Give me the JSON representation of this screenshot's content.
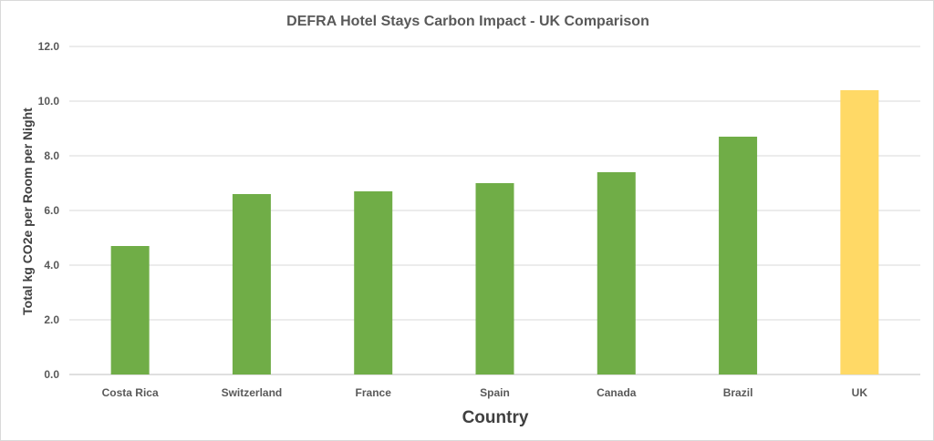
{
  "chart_data": {
    "type": "bar",
    "title": "DEFRA Hotel Stays Carbon Impact - UK Comparison",
    "xlabel": "Country",
    "ylabel": "Total kg CO2e per Room per Night",
    "categories": [
      "Costa Rica",
      "Switzerland",
      "France",
      "Spain",
      "Canada",
      "Brazil",
      "UK"
    ],
    "values": [
      4.7,
      6.6,
      6.7,
      7.0,
      7.4,
      8.7,
      10.4
    ],
    "bar_colors": [
      "#70ad47",
      "#70ad47",
      "#70ad47",
      "#70ad47",
      "#70ad47",
      "#70ad47",
      "#ffd966"
    ],
    "ylim": [
      0,
      12
    ],
    "yticks": [
      "0.0",
      "2.0",
      "4.0",
      "6.0",
      "8.0",
      "10.0",
      "12.0"
    ],
    "grid": true,
    "legend": "none"
  }
}
